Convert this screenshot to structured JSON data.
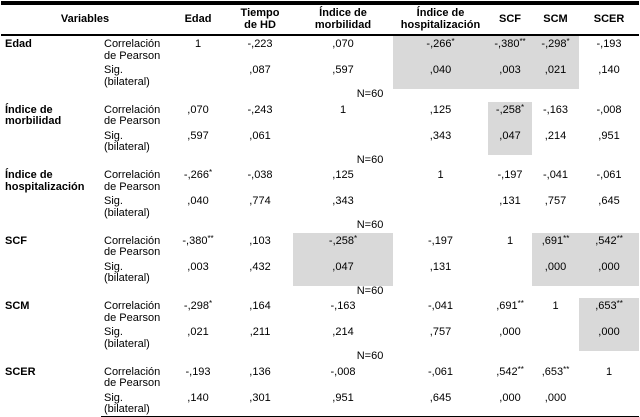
{
  "header": {
    "variables_label": "Variables",
    "columns": [
      "Edad",
      "Tiempo\nde HD",
      "Índice de\nmorbilidad",
      "Índice de\nhospitalización",
      "SCF",
      "SCM",
      "SCER"
    ]
  },
  "labels": {
    "pearson": "Correlación\nde Pearson",
    "sig": "Sig.\n(bilateral)",
    "n": "N=60"
  },
  "colors": {
    "highlight": "#d9d9d9",
    "line": "#000000"
  },
  "blocks": [
    {
      "name": "Edad",
      "corr": [
        {
          "v": "1",
          "s": ""
        },
        {
          "v": "-,223",
          "s": ""
        },
        {
          "v": ",070",
          "s": ""
        },
        {
          "v": "-,266",
          "s": "*"
        },
        {
          "v": "-,380",
          "s": "**"
        },
        {
          "v": "-,298",
          "s": "*"
        },
        {
          "v": "-,193",
          "s": ""
        }
      ],
      "sig": [
        "",
        ",087",
        ",597",
        ",040",
        ",003",
        ",021",
        ",140"
      ]
    },
    {
      "name": "Índice de\nmorbilidad",
      "corr": [
        {
          "v": ",070",
          "s": ""
        },
        {
          "v": "-,243",
          "s": ""
        },
        {
          "v": "1",
          "s": ""
        },
        {
          "v": ",125",
          "s": ""
        },
        {
          "v": "-,258",
          "s": "*"
        },
        {
          "v": "-,163",
          "s": ""
        },
        {
          "v": "-,008",
          "s": ""
        }
      ],
      "sig": [
        ",597",
        ",061",
        "",
        ",343",
        ",047",
        ",214",
        ",951"
      ]
    },
    {
      "name": "Índice de\nhospitalización",
      "corr": [
        {
          "v": "-,266",
          "s": "*"
        },
        {
          "v": "-,038",
          "s": ""
        },
        {
          "v": ",125",
          "s": ""
        },
        {
          "v": "1",
          "s": ""
        },
        {
          "v": "-,197",
          "s": ""
        },
        {
          "v": "-,041",
          "s": ""
        },
        {
          "v": "-,061",
          "s": ""
        }
      ],
      "sig": [
        ",040",
        ",774",
        ",343",
        "",
        ",131",
        ",757",
        ",645"
      ]
    },
    {
      "name": "SCF",
      "corr": [
        {
          "v": "-,380",
          "s": "**"
        },
        {
          "v": ",103",
          "s": ""
        },
        {
          "v": "-,258",
          "s": "*"
        },
        {
          "v": "-,197",
          "s": ""
        },
        {
          "v": "1",
          "s": ""
        },
        {
          "v": ",691",
          "s": "**"
        },
        {
          "v": ",542",
          "s": "**"
        }
      ],
      "sig": [
        ",003",
        ",432",
        ",047",
        ",131",
        "",
        ",000",
        ",000"
      ]
    },
    {
      "name": "SCM",
      "corr": [
        {
          "v": "-,298",
          "s": "*"
        },
        {
          "v": ",164",
          "s": ""
        },
        {
          "v": "-,163",
          "s": ""
        },
        {
          "v": "-,041",
          "s": ""
        },
        {
          "v": ",691",
          "s": "**"
        },
        {
          "v": "1",
          "s": ""
        },
        {
          "v": ",653",
          "s": "**"
        }
      ],
      "sig": [
        ",021",
        ",211",
        ",214",
        ",757",
        ",000",
        "",
        ",000"
      ]
    },
    {
      "name": "SCER",
      "corr": [
        {
          "v": "-,193",
          "s": ""
        },
        {
          "v": ",136",
          "s": ""
        },
        {
          "v": "-,008",
          "s": ""
        },
        {
          "v": "-,061",
          "s": ""
        },
        {
          "v": ",542",
          "s": "**"
        },
        {
          "v": ",653",
          "s": "**"
        },
        {
          "v": "1",
          "s": ""
        }
      ],
      "sig": [
        ",140",
        ",301",
        ",951",
        ",645",
        ",000",
        ",000",
        ""
      ]
    }
  ]
}
